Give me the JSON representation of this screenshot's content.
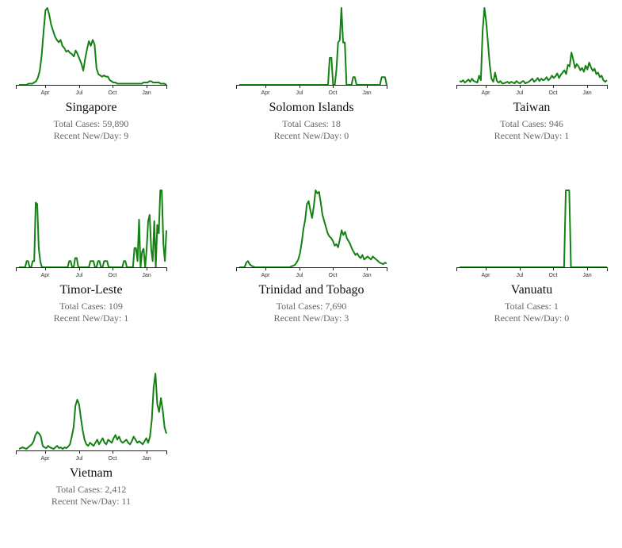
{
  "line_color": "#138212",
  "axis_color": "#222222",
  "chart_data": [
    {
      "type": "line",
      "title": "Singapore",
      "stats": {
        "total": "Total Cases: 59,890",
        "recent": "Recent New/Day: 9"
      },
      "x_ticks": [
        "Apr",
        "Jul",
        "Oct",
        "Jan"
      ],
      "series": [
        {
          "values": [
            0,
            0,
            0,
            0,
            0,
            1,
            1,
            1,
            2,
            3,
            6,
            12,
            25,
            45,
            63,
            65,
            59,
            51,
            46,
            41,
            38,
            36,
            38,
            33,
            31,
            28,
            29,
            27,
            26,
            24,
            29,
            26,
            22,
            18,
            12,
            22,
            30,
            37,
            33,
            38,
            34,
            14,
            9,
            8,
            7,
            8,
            7,
            7,
            4,
            3,
            2,
            2,
            1,
            1,
            1,
            1,
            1,
            1,
            1,
            1,
            1,
            1,
            1,
            1,
            1,
            1,
            2,
            2,
            2,
            3,
            3,
            2,
            2,
            2,
            2,
            1,
            1,
            1,
            0
          ]
        }
      ]
    },
    {
      "type": "line",
      "title": "Solomon Islands",
      "stats": {
        "total": "Total Cases: 18",
        "recent": "Recent New/Day: 0"
      },
      "x_ticks": [
        "Apr",
        "Jul",
        "Oct",
        "Jan"
      ],
      "series": [
        {
          "values": [
            0,
            0,
            0,
            0,
            0,
            0,
            0,
            0,
            0,
            0,
            0,
            0,
            0,
            0,
            0,
            0,
            0,
            0,
            0,
            0,
            0,
            0,
            0,
            0,
            0,
            0,
            0,
            0,
            0,
            0,
            0,
            0,
            0,
            0,
            0,
            0,
            0,
            0,
            0,
            0,
            0,
            0,
            0,
            0,
            0,
            0,
            0,
            0,
            0,
            0,
            0,
            0,
            0,
            0,
            35,
            35,
            0,
            0,
            20,
            55,
            58,
            100,
            55,
            55,
            0,
            0,
            0,
            0,
            10,
            10,
            0,
            0,
            0,
            0,
            0,
            0,
            0,
            0,
            0,
            0,
            0,
            0,
            0,
            0,
            0,
            10,
            10,
            10,
            0
          ]
        }
      ]
    },
    {
      "type": "line",
      "title": "Taiwan",
      "stats": {
        "total": "Total Cases: 946",
        "recent": "Recent New/Day: 1"
      },
      "x_ticks": [
        "Apr",
        "Jul",
        "Oct",
        "Jan"
      ],
      "series": [
        {
          "values": [
            5,
            4,
            6,
            3,
            5,
            7,
            4,
            8,
            5,
            4,
            3,
            12,
            6,
            70,
            100,
            82,
            54,
            26,
            8,
            4,
            16,
            5,
            3,
            5,
            2,
            2,
            3,
            4,
            2,
            4,
            3,
            2,
            5,
            3,
            2,
            4,
            5,
            2,
            3,
            4,
            6,
            8,
            4,
            6,
            9,
            5,
            8,
            6,
            7,
            10,
            6,
            8,
            12,
            9,
            11,
            15,
            9,
            13,
            16,
            19,
            14,
            26,
            24,
            42,
            33,
            22,
            27,
            24,
            19,
            22,
            17,
            25,
            20,
            29,
            23,
            18,
            21,
            14,
            16,
            10,
            12,
            6,
            4,
            6
          ]
        }
      ]
    },
    {
      "type": "line",
      "title": "Timor-Leste",
      "stats": {
        "total": "Total Cases: 109",
        "recent": "Recent New/Day: 1"
      },
      "x_ticks": [
        "Apr",
        "Jul",
        "Oct",
        "Jan"
      ],
      "series": [
        {
          "values": [
            0,
            0,
            0,
            0,
            0,
            8,
            8,
            0,
            0,
            8,
            8,
            84,
            82,
            25,
            8,
            0,
            0,
            0,
            0,
            0,
            0,
            0,
            0,
            0,
            0,
            0,
            0,
            0,
            0,
            0,
            0,
            0,
            0,
            8,
            8,
            0,
            0,
            12,
            12,
            0,
            0,
            0,
            0,
            0,
            0,
            0,
            0,
            8,
            8,
            8,
            0,
            0,
            8,
            8,
            0,
            0,
            8,
            8,
            8,
            0,
            0,
            0,
            0,
            0,
            0,
            0,
            0,
            0,
            0,
            8,
            8,
            0,
            0,
            0,
            0,
            0,
            25,
            25,
            8,
            62,
            0,
            20,
            24,
            0,
            24,
            60,
            68,
            24,
            8,
            60,
            0,
            55,
            44,
            100,
            100,
            30,
            8,
            48
          ]
        }
      ]
    },
    {
      "type": "line",
      "title": "Trinidad and Tobago",
      "stats": {
        "total": "Total Cases: 7,690",
        "recent": "Recent New/Day: 3"
      },
      "x_ticks": [
        "Apr",
        "Jul",
        "Oct",
        "Jan"
      ],
      "series": [
        {
          "values": [
            0,
            0,
            0,
            0,
            6,
            8,
            4,
            2,
            1,
            0,
            0,
            0,
            0,
            0,
            0,
            0,
            0,
            0,
            0,
            0,
            0,
            0,
            0,
            0,
            0,
            0,
            0,
            0,
            0,
            0,
            1,
            2,
            3,
            6,
            10,
            18,
            32,
            50,
            62,
            82,
            86,
            74,
            64,
            80,
            100,
            96,
            98,
            84,
            68,
            60,
            52,
            44,
            40,
            38,
            34,
            28,
            30,
            26,
            36,
            48,
            42,
            46,
            38,
            34,
            30,
            24,
            20,
            16,
            18,
            14,
            12,
            16,
            10,
            12,
            14,
            12,
            10,
            14,
            12,
            10,
            8,
            6,
            5,
            4,
            6,
            5
          ]
        }
      ]
    },
    {
      "type": "line",
      "title": "Vanuatu",
      "stats": {
        "total": "Total Cases: 1",
        "recent": "Recent New/Day: 0"
      },
      "x_ticks": [
        "Apr",
        "Jul",
        "Oct",
        "Jan"
      ],
      "series": [
        {
          "values": [
            0,
            0,
            0,
            0,
            0,
            0,
            0,
            0,
            0,
            0,
            0,
            0,
            0,
            0,
            0,
            0,
            0,
            0,
            0,
            0,
            0,
            0,
            0,
            0,
            0,
            0,
            0,
            0,
            0,
            0,
            0,
            0,
            0,
            0,
            0,
            0,
            0,
            0,
            0,
            0,
            0,
            0,
            0,
            0,
            0,
            0,
            0,
            0,
            0,
            0,
            0,
            0,
            0,
            0,
            0,
            0,
            0,
            0,
            0,
            0,
            0,
            0,
            100,
            100,
            100,
            0,
            0,
            0,
            0,
            0,
            0,
            0,
            0,
            0,
            0,
            0,
            0,
            0,
            0,
            0,
            0,
            0,
            0,
            0,
            0,
            0,
            0
          ]
        }
      ]
    },
    {
      "type": "line",
      "title": "Vietnam",
      "stats": {
        "total": "Total Cases: 2,412",
        "recent": "Recent New/Day: 11"
      },
      "x_ticks": [
        "Apr",
        "Jul",
        "Oct",
        "Jan"
      ],
      "series": [
        {
          "values": [
            2,
            3,
            4,
            3,
            2,
            4,
            6,
            8,
            12,
            20,
            24,
            22,
            18,
            6,
            4,
            3,
            6,
            4,
            3,
            2,
            4,
            6,
            3,
            4,
            2,
            4,
            3,
            5,
            8,
            18,
            30,
            58,
            66,
            60,
            42,
            26,
            14,
            8,
            6,
            10,
            8,
            6,
            10,
            14,
            8,
            12,
            16,
            10,
            8,
            14,
            12,
            10,
            16,
            20,
            14,
            18,
            12,
            10,
            12,
            14,
            10,
            8,
            12,
            18,
            14,
            10,
            12,
            10,
            8,
            12,
            16,
            10,
            18,
            40,
            82,
            100,
            60,
            50,
            68,
            52,
            30,
            22
          ]
        }
      ]
    }
  ]
}
